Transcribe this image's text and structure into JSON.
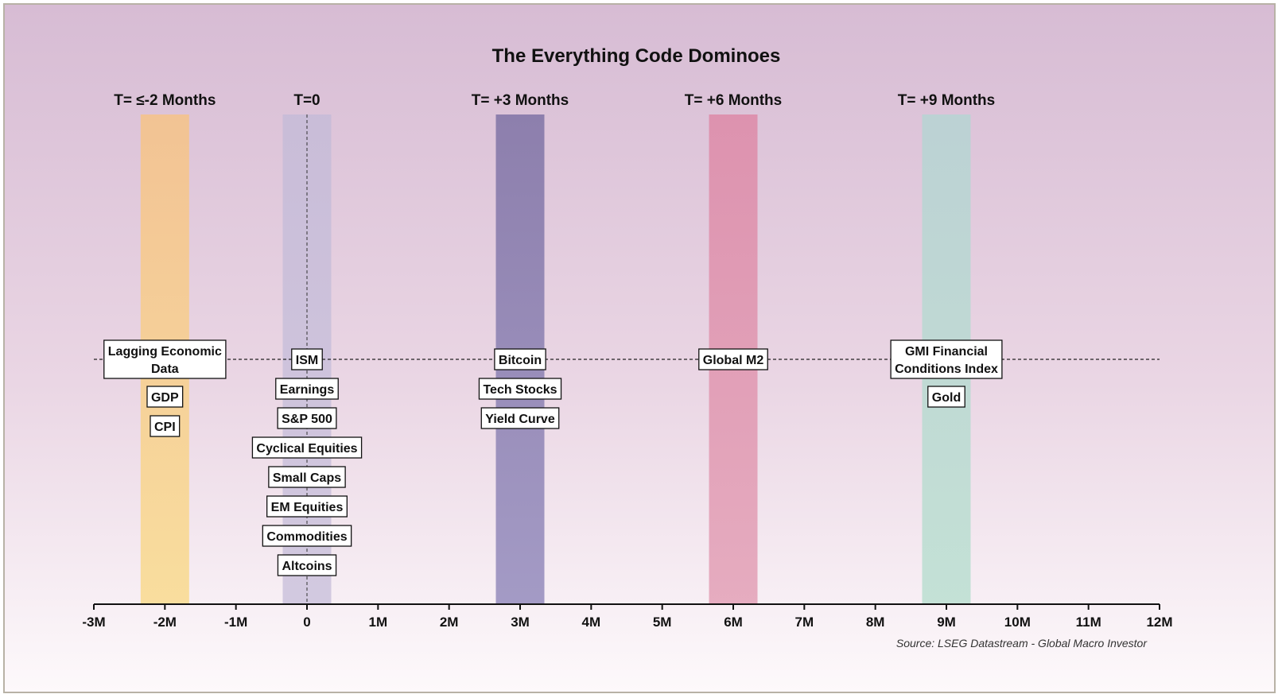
{
  "chart_data": {
    "type": "timeline",
    "title": "The Everything Code Dominoes",
    "source": "Source: LSEG Datastream - Global Macro Investor",
    "x_range": [
      -3,
      12
    ],
    "x_ticks": [
      {
        "value": -3,
        "label": "-3M"
      },
      {
        "value": -2,
        "label": "-2M"
      },
      {
        "value": -1,
        "label": "-1M"
      },
      {
        "value": 0,
        "label": "0"
      },
      {
        "value": 1,
        "label": "1M"
      },
      {
        "value": 2,
        "label": "2M"
      },
      {
        "value": 3,
        "label": "3M"
      },
      {
        "value": 4,
        "label": "4M"
      },
      {
        "value": 5,
        "label": "5M"
      },
      {
        "value": 6,
        "label": "6M"
      },
      {
        "value": 7,
        "label": "7M"
      },
      {
        "value": 8,
        "label": "8M"
      },
      {
        "value": 9,
        "label": "9M"
      },
      {
        "value": 10,
        "label": "10M"
      },
      {
        "value": 11,
        "label": "11M"
      },
      {
        "value": 12,
        "label": "12M"
      }
    ],
    "columns": [
      {
        "header": "T= ≤-2 Months",
        "center": -2,
        "color_top": "#f4c38e",
        "color_bottom": "#f9dc96",
        "items": [
          [
            "Lagging Economic",
            "Data"
          ],
          [
            "GDP"
          ],
          [
            "CPI"
          ]
        ]
      },
      {
        "header": "T=0",
        "center": 0,
        "color_top": "#c7bcd8",
        "color_bottom": "#cfc6de",
        "items": [
          [
            "ISM"
          ],
          [
            "Earnings"
          ],
          [
            "S&P 500"
          ],
          [
            "Cyclical Equities"
          ],
          [
            "Small Caps"
          ],
          [
            "EM Equities"
          ],
          [
            "Commodities"
          ],
          [
            "Altcoins"
          ]
        ]
      },
      {
        "header": "T= +3 Months",
        "center": 3,
        "color_top": "#8679a9",
        "color_bottom": "#9c93c1",
        "items": [
          [
            "Bitcoin"
          ],
          [
            "Tech Stocks"
          ],
          [
            "Yield Curve"
          ]
        ]
      },
      {
        "header": "T= +6 Months",
        "center": 6,
        "color_top": "#dd8eab",
        "color_bottom": "#e4a6bb",
        "items": [
          [
            "Global M2"
          ]
        ]
      },
      {
        "header": "T= +9 Months",
        "center": 9,
        "color_top": "#b9d3d3",
        "color_bottom": "#bfe0d3",
        "items": [
          [
            "GMI Financial",
            "Conditions Index"
          ],
          [
            "Gold"
          ]
        ]
      }
    ],
    "reference_line": "dashed horizontal",
    "grid": false
  }
}
